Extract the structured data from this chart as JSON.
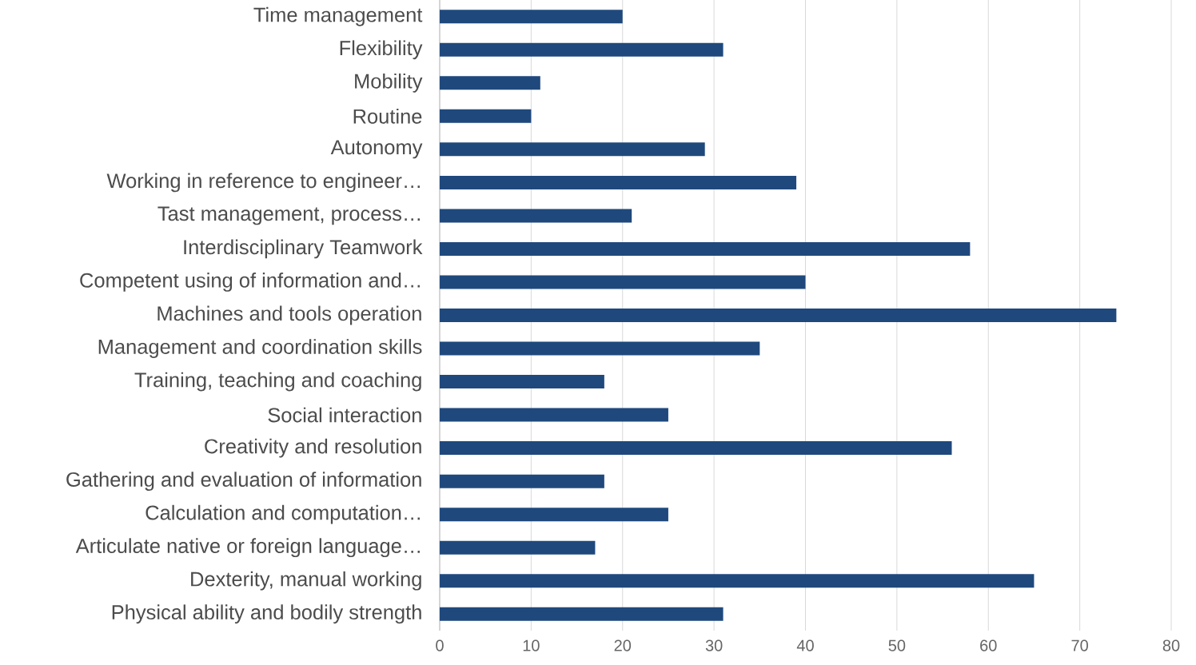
{
  "chart_data": {
    "type": "bar",
    "orientation": "horizontal",
    "categories": [
      "Time management",
      "Flexibility",
      "Mobility",
      "Routine",
      "Autonomy",
      "Working in reference to engineer…",
      "Tast management, process…",
      "Interdisciplinary Teamwork",
      "Competent using of information and…",
      "Machines and tools operation",
      "Management and coordination skills",
      "Training, teaching and coaching",
      "Social interaction",
      "Creativity and resolution",
      "Gathering and evaluation of information",
      "Calculation and computation…",
      "Articulate native or foreign language…",
      "Dexterity, manual working",
      "Physical ability and bodily strength"
    ],
    "values": [
      20,
      31,
      11,
      10,
      29,
      39,
      21,
      58,
      40,
      74,
      35,
      18,
      25,
      56,
      18,
      25,
      17,
      65,
      31
    ],
    "color": "#1f497d",
    "xlim": [
      0,
      80
    ],
    "xticks": [
      0,
      10,
      20,
      30,
      40,
      50,
      60,
      70,
      80
    ],
    "grid": "x"
  }
}
